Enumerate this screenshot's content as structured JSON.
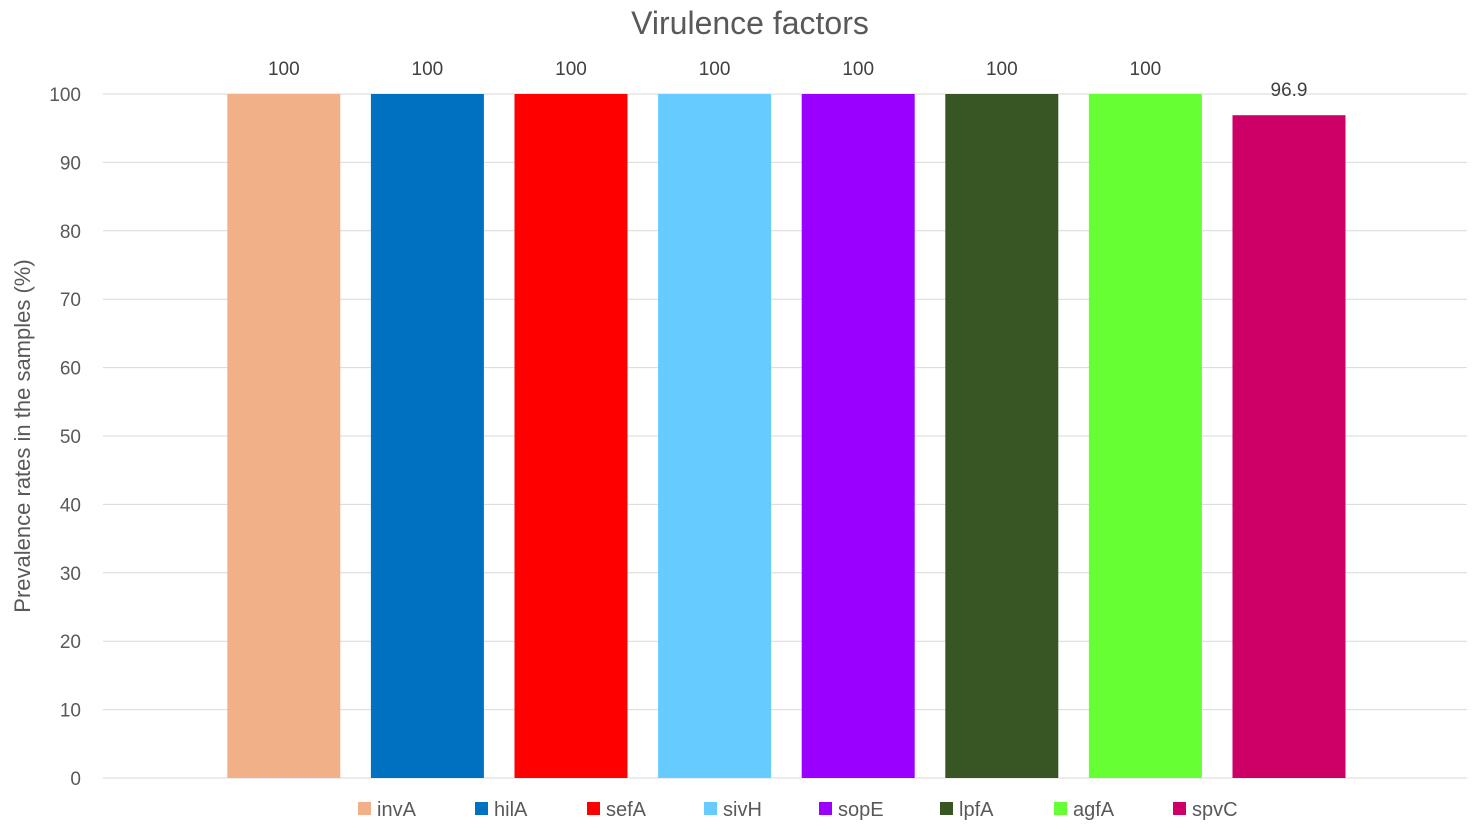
{
  "chart_data": {
    "type": "bar",
    "title": "Virulence factors",
    "xlabel": "",
    "ylabel": "Prevalence rates in the samples (%)",
    "ylim": [
      0,
      100
    ],
    "yticks": [
      0,
      10,
      20,
      30,
      40,
      50,
      60,
      70,
      80,
      90,
      100
    ],
    "grid": true,
    "legend_position": "bottom",
    "series": [
      {
        "name": "invA",
        "value": 100,
        "label": "100",
        "color": "#F2B089"
      },
      {
        "name": "hilA",
        "value": 100,
        "label": "100",
        "color": "#0070C0"
      },
      {
        "name": "sefA",
        "value": 100,
        "label": "100",
        "color": "#FF0000"
      },
      {
        "name": "sivH",
        "value": 100,
        "label": "100",
        "color": "#66CCFF"
      },
      {
        "name": "sopE",
        "value": 100,
        "label": "100",
        "color": "#9900FF"
      },
      {
        "name": "lpfA",
        "value": 100,
        "label": "100",
        "color": "#375623"
      },
      {
        "name": "agfA",
        "value": 100,
        "label": "100",
        "color": "#66FF33"
      },
      {
        "name": "spvC",
        "value": 96.9,
        "label": "96.9",
        "color": "#CC0066"
      }
    ]
  }
}
